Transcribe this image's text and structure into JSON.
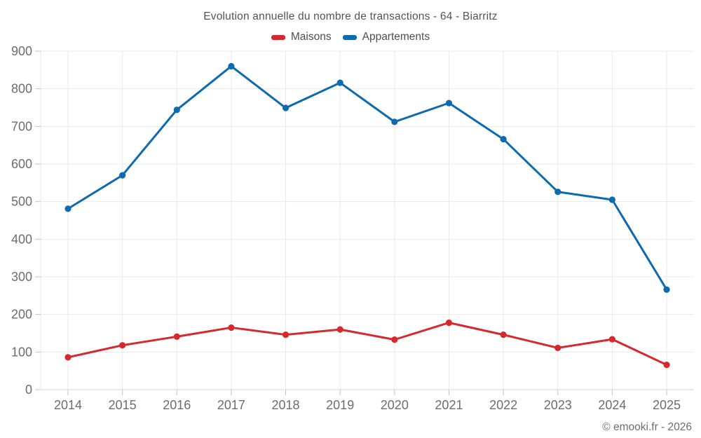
{
  "chart_data": {
    "type": "line",
    "title": "Evolution annuelle du nombre de transactions - 64 - Biarritz",
    "source": "© emooki.fr - 2026",
    "categories": [
      "2014",
      "2015",
      "2016",
      "2017",
      "2018",
      "2019",
      "2020",
      "2021",
      "2022",
      "2023",
      "2024",
      "2025"
    ],
    "series": [
      {
        "name": "Maisons",
        "color": "#d6292d",
        "values": [
          86,
          118,
          141,
          165,
          146,
          160,
          133,
          178,
          146,
          111,
          134,
          66
        ]
      },
      {
        "name": "Appartements",
        "color": "#0d6aae",
        "values": [
          481,
          570,
          744,
          860,
          749,
          816,
          712,
          762,
          666,
          526,
          505,
          266
        ]
      }
    ],
    "xlabel": "",
    "ylabel": "",
    "ylim": [
      0,
      900
    ],
    "ytick_step": 100,
    "grid": true,
    "legend_position": "top",
    "marker": "circle"
  },
  "style": {
    "grid_color": "#e9e9e9",
    "axis_line_color": "#d6d6d6",
    "tick_mark_color": "#c4c4c4",
    "tick_label_color": "#6d6d6d"
  }
}
